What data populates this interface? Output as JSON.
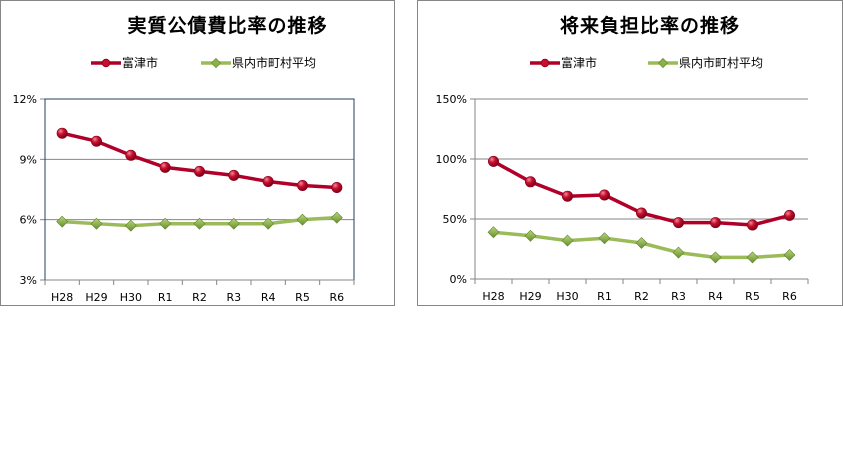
{
  "colors": {
    "series_futtsu": "#b0002a",
    "series_futtsu_marker": "#c8102e",
    "series_pref_avg": "#9bbb59",
    "series_pref_avg_marker": "#7ea63a",
    "gridline": "#868686",
    "plot_border": "#243f60",
    "frame_border": "#868686"
  },
  "legend": {
    "futtsu": "富津市",
    "pref_avg": "県内市町村平均"
  },
  "chart_data": [
    {
      "type": "line",
      "title": "実質公債費比率の推移",
      "categories": [
        "H28",
        "H29",
        "H30",
        "R1",
        "R2",
        "R3",
        "R4",
        "R5",
        "R6"
      ],
      "series": [
        {
          "name": "富津市",
          "values": [
            10.3,
            9.9,
            9.2,
            8.6,
            8.4,
            8.2,
            7.9,
            7.7,
            7.6
          ]
        },
        {
          "name": "県内市町村平均",
          "values": [
            5.9,
            5.8,
            5.7,
            5.8,
            5.8,
            5.8,
            5.8,
            6.0,
            6.1
          ]
        }
      ],
      "ylim": [
        3,
        12
      ],
      "yticks": [
        3,
        6,
        9,
        12
      ],
      "ytick_labels": [
        "3%",
        "6%",
        "9%",
        "12%"
      ],
      "xlabel": "",
      "ylabel": "",
      "grid": true,
      "legend_position": "top",
      "unit": "%"
    },
    {
      "type": "line",
      "title": "将来負担比率の推移",
      "categories": [
        "H28",
        "H29",
        "H30",
        "R1",
        "R2",
        "R3",
        "R4",
        "R5",
        "R6"
      ],
      "series": [
        {
          "name": "富津市",
          "values": [
            98,
            81,
            69,
            70,
            55,
            47,
            47,
            45,
            53
          ]
        },
        {
          "name": "県内市町村平均",
          "values": [
            39,
            36,
            32,
            34,
            30,
            22,
            18,
            18,
            20
          ]
        }
      ],
      "ylim": [
        0,
        150
      ],
      "yticks": [
        0,
        50,
        100,
        150
      ],
      "ytick_labels": [
        "0%",
        "50%",
        "100%",
        "150%"
      ],
      "xlabel": "",
      "ylabel": "",
      "grid": true,
      "legend_position": "top",
      "unit": "%"
    }
  ]
}
